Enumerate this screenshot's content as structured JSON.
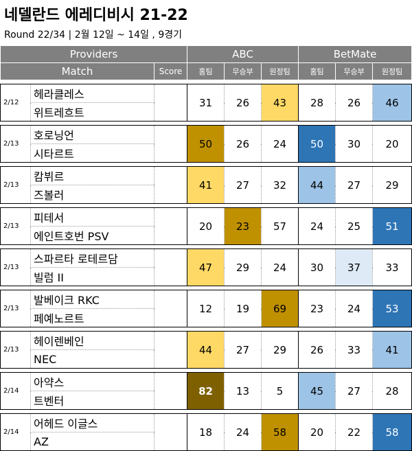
{
  "title": "네델란드 에레디비시 21-22",
  "subtitle": "Round 22/34 | 2월 12일 ~ 14일 , 9경기",
  "header": {
    "providers_label": "Providers",
    "match_label": "Match",
    "score_label": "Score",
    "providers": [
      "ABC",
      "BetMate"
    ],
    "outcomes": [
      "홈팀",
      "무승부",
      "원정팀"
    ]
  },
  "colors": {
    "header_bg": "#808080",
    "abc_light": "#FFD966",
    "abc_dark": "#BF9000",
    "abc_darkest": "#7F6000",
    "bm_light": "#9DC3E6",
    "bm_dark": "#2E75B6",
    "bm_pale": "#DEEBF7"
  },
  "matches": [
    {
      "date": "2/12",
      "home": "헤라클레스",
      "away": "위트레흐트",
      "score": "",
      "abc": [
        "31",
        "26",
        "43"
      ],
      "betmate": [
        "28",
        "26",
        "46"
      ]
    },
    {
      "date": "2/13",
      "home": "호로닝언",
      "away": "시타르트",
      "score": "",
      "abc": [
        "50",
        "26",
        "24"
      ],
      "betmate": [
        "50",
        "30",
        "20"
      ]
    },
    {
      "date": "2/13",
      "home": "캄뷔르",
      "away": "즈볼러",
      "score": "",
      "abc": [
        "41",
        "27",
        "32"
      ],
      "betmate": [
        "44",
        "27",
        "29"
      ]
    },
    {
      "date": "2/13",
      "home": "피테서",
      "away": "에인트호번 PSV",
      "score": "",
      "abc": [
        "20",
        "23",
        "57"
      ],
      "betmate": [
        "24",
        "25",
        "51"
      ]
    },
    {
      "date": "2/13",
      "home": "스파르타 로테르담",
      "away": "빌럼 II",
      "score": "",
      "abc": [
        "47",
        "29",
        "24"
      ],
      "betmate": [
        "30",
        "37",
        "33"
      ]
    },
    {
      "date": "2/13",
      "home": "발베이크 RKC",
      "away": "페예노르트",
      "score": "",
      "abc": [
        "12",
        "19",
        "69"
      ],
      "betmate": [
        "23",
        "24",
        "53"
      ]
    },
    {
      "date": "2/13",
      "home": "헤이렌베인",
      "away": "NEC",
      "score": "",
      "abc": [
        "44",
        "27",
        "29"
      ],
      "betmate": [
        "26",
        "33",
        "41"
      ]
    },
    {
      "date": "2/14",
      "home": "아약스",
      "away": "트벤터",
      "score": "",
      "abc": [
        "82",
        "13",
        "5"
      ],
      "betmate": [
        "45",
        "27",
        "28"
      ]
    },
    {
      "date": "2/14",
      "home": "어헤드 이글스",
      "away": "AZ",
      "score": "",
      "abc": [
        "18",
        "24",
        "58"
      ],
      "betmate": [
        "20",
        "22",
        "58"
      ]
    }
  ],
  "highlights": {
    "abc": [
      "",
      "",
      "abc_light",
      "abc_dark",
      "",
      "",
      "abc_light",
      "",
      "",
      "",
      "abc_dark",
      "",
      "abc_light",
      "",
      "",
      "",
      "",
      "abc_dark",
      "abc_light",
      "",
      "",
      "abc_darkest",
      "",
      "",
      "",
      "",
      "abc_dark"
    ],
    "betmate": [
      "",
      "",
      "bm_light",
      "bm_dark",
      "",
      "",
      "bm_light",
      "",
      "",
      "",
      "",
      "bm_dark",
      "",
      "bm_pale",
      "",
      "",
      "",
      "bm_dark",
      "",
      "",
      "bm_light",
      "bm_light",
      "",
      "",
      "",
      "",
      "bm_dark"
    ]
  }
}
